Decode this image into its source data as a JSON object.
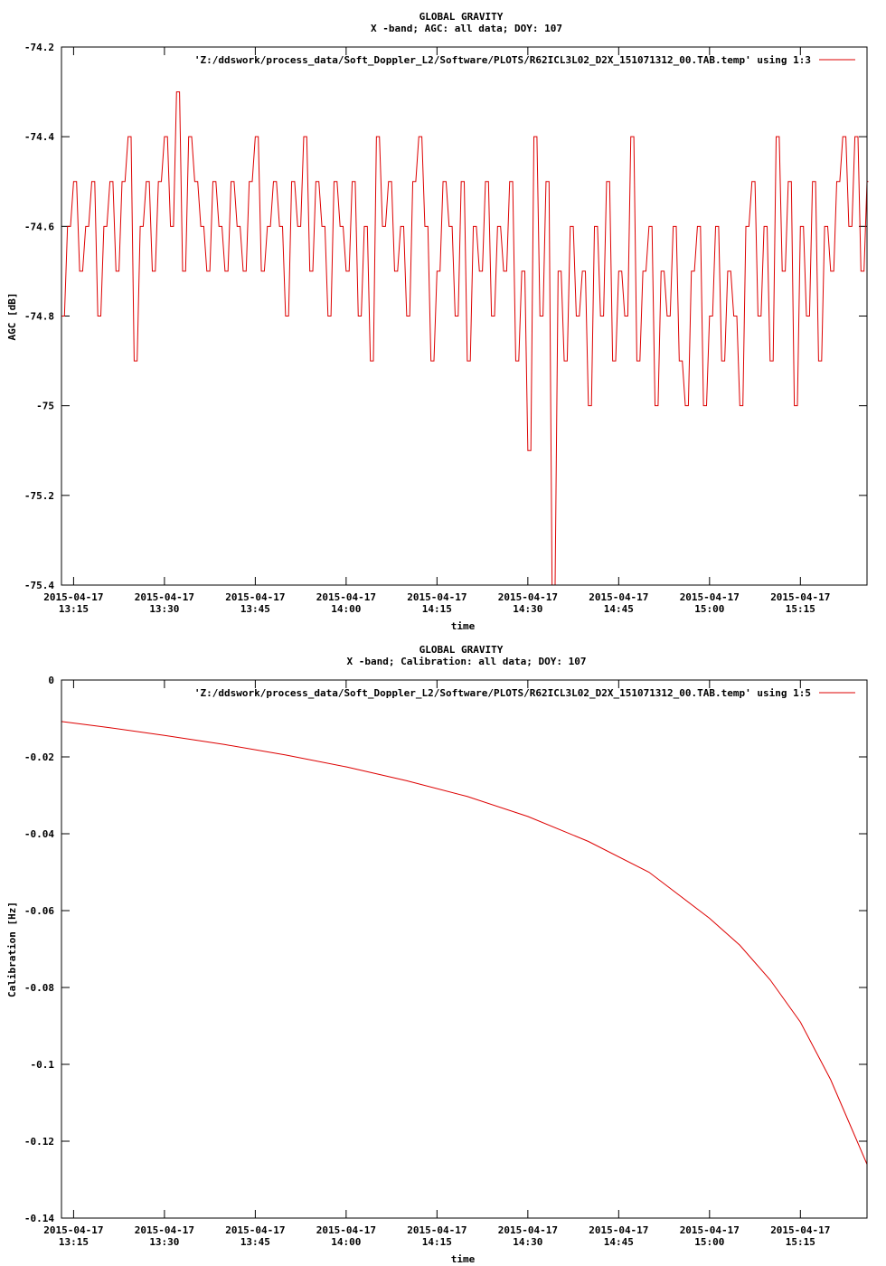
{
  "chart_data": [
    {
      "type": "line",
      "title": "GLOBAL GRAVITY",
      "subtitle": "X -band; AGC: all data; DOY: 107",
      "xlabel": "time",
      "ylabel": "AGC [dB]",
      "legend": "'Z:/ddswork/process_data/Soft_Doppler_L2/Software/PLOTS/R62ICL3L02_D2X_151071312_00.TAB.temp' using 1:3",
      "legend_position": "top-right",
      "color": "#dd0000",
      "x_range": [
        "2015-04-17 13:13",
        "2015-04-17 15:26"
      ],
      "ylim": [
        -75.4,
        -74.2
      ],
      "y_ticks": [
        {
          "value": -74.2,
          "label": "-74.2"
        },
        {
          "value": -74.4,
          "label": "-74.4"
        },
        {
          "value": -74.6,
          "label": "-74.6"
        },
        {
          "value": -74.8,
          "label": "-74.8"
        },
        {
          "value": -75.0,
          "label": "-75"
        },
        {
          "value": -75.2,
          "label": "-75.2"
        },
        {
          "value": -75.4,
          "label": "-75.4"
        }
      ],
      "x_ticks": [
        {
          "value": "13:15",
          "date": "2015-04-17",
          "time": "13:15"
        },
        {
          "value": "13:30",
          "date": "2015-04-17",
          "time": "13:30"
        },
        {
          "value": "13:45",
          "date": "2015-04-17",
          "time": "13:45"
        },
        {
          "value": "14:00",
          "date": "2015-04-17",
          "time": "14:00"
        },
        {
          "value": "14:15",
          "date": "2015-04-17",
          "time": "14:15"
        },
        {
          "value": "14:30",
          "date": "2015-04-17",
          "time": "14:30"
        },
        {
          "value": "14:45",
          "date": "2015-04-17",
          "time": "14:45"
        },
        {
          "value": "15:00",
          "date": "2015-04-17",
          "time": "15:00"
        },
        {
          "value": "15:15",
          "date": "2015-04-17",
          "time": "15:15"
        }
      ],
      "x": [
        "13:13",
        "13:14",
        "13:15",
        "13:16",
        "13:17",
        "13:18",
        "13:19",
        "13:20",
        "13:21",
        "13:22",
        "13:23",
        "13:24",
        "13:25",
        "13:26",
        "13:27",
        "13:28",
        "13:29",
        "13:30",
        "13:31",
        "13:32",
        "13:33",
        "13:34",
        "13:35",
        "13:36",
        "13:37",
        "13:38",
        "13:39",
        "13:40",
        "13:41",
        "13:42",
        "13:43",
        "13:44",
        "13:45",
        "13:46",
        "13:47",
        "13:48",
        "13:49",
        "13:50",
        "13:51",
        "13:52",
        "13:53",
        "13:54",
        "13:55",
        "13:56",
        "13:57",
        "13:58",
        "13:59",
        "14:00",
        "14:01",
        "14:02",
        "14:03",
        "14:04",
        "14:05",
        "14:06",
        "14:07",
        "14:08",
        "14:09",
        "14:10",
        "14:11",
        "14:12",
        "14:13",
        "14:14",
        "14:15",
        "14:16",
        "14:17",
        "14:18",
        "14:19",
        "14:20",
        "14:21",
        "14:22",
        "14:23",
        "14:24",
        "14:25",
        "14:26",
        "14:27",
        "14:28",
        "14:29",
        "14:30",
        "14:31",
        "14:32",
        "14:33",
        "14:34",
        "14:35",
        "14:36",
        "14:37",
        "14:38",
        "14:39",
        "14:40",
        "14:41",
        "14:42",
        "14:43",
        "14:44",
        "14:45",
        "14:46",
        "14:47",
        "14:48",
        "14:49",
        "14:50",
        "14:51",
        "14:52",
        "14:53",
        "14:54",
        "14:55",
        "14:56",
        "14:57",
        "14:58",
        "14:59",
        "15:00",
        "15:01",
        "15:02",
        "15:03",
        "15:04",
        "15:05",
        "15:06",
        "15:07",
        "15:08",
        "15:09",
        "15:10",
        "15:11",
        "15:12",
        "15:13",
        "15:14",
        "15:15",
        "15:16",
        "15:17",
        "15:18",
        "15:19",
        "15:20",
        "15:21",
        "15:22",
        "15:23",
        "15:24",
        "15:25",
        "15:26"
      ],
      "values": [
        -74.8,
        -74.6,
        -74.5,
        -74.7,
        -74.6,
        -74.5,
        -74.8,
        -74.6,
        -74.5,
        -74.7,
        -74.5,
        -74.4,
        -74.9,
        -74.6,
        -74.5,
        -74.7,
        -74.5,
        -74.4,
        -74.6,
        -74.3,
        -74.7,
        -74.4,
        -74.5,
        -74.6,
        -74.7,
        -74.5,
        -74.6,
        -74.7,
        -74.5,
        -74.6,
        -74.7,
        -74.5,
        -74.4,
        -74.7,
        -74.6,
        -74.5,
        -74.6,
        -74.8,
        -74.5,
        -74.6,
        -74.4,
        -74.7,
        -74.5,
        -74.6,
        -74.8,
        -74.5,
        -74.6,
        -74.7,
        -74.5,
        -74.8,
        -74.6,
        -74.9,
        -74.4,
        -74.6,
        -74.5,
        -74.7,
        -74.6,
        -74.8,
        -74.5,
        -74.4,
        -74.6,
        -74.9,
        -74.7,
        -74.5,
        -74.6,
        -74.8,
        -74.5,
        -74.9,
        -74.6,
        -74.7,
        -74.5,
        -74.8,
        -74.6,
        -74.7,
        -74.5,
        -74.9,
        -74.7,
        -75.1,
        -74.4,
        -74.8,
        -74.5,
        -75.4,
        -74.7,
        -74.9,
        -74.6,
        -74.8,
        -74.7,
        -75.0,
        -74.6,
        -74.8,
        -74.5,
        -74.9,
        -74.7,
        -74.8,
        -74.4,
        -74.9,
        -74.7,
        -74.6,
        -75.0,
        -74.7,
        -74.8,
        -74.6,
        -74.9,
        -75.0,
        -74.7,
        -74.6,
        -75.0,
        -74.8,
        -74.6,
        -74.9,
        -74.7,
        -74.8,
        -75.0,
        -74.6,
        -74.5,
        -74.8,
        -74.6,
        -74.9,
        -74.4,
        -74.7,
        -74.5,
        -75.0,
        -74.6,
        -74.8,
        -74.5,
        -74.9,
        -74.6,
        -74.7,
        -74.5,
        -74.4,
        -74.6,
        -74.4,
        -74.7,
        -74.5
      ]
    },
    {
      "type": "line",
      "title": "GLOBAL GRAVITY",
      "subtitle": "X -band; Calibration: all data; DOY: 107",
      "xlabel": "time",
      "ylabel": "Calibration [Hz]",
      "legend": "'Z:/ddswork/process_data/Soft_Doppler_L2/Software/PLOTS/R62ICL3L02_D2X_151071312_00.TAB.temp' using 1:5",
      "legend_position": "top-right",
      "color": "#dd0000",
      "x_range": [
        "2015-04-17 13:13",
        "2015-04-17 15:26"
      ],
      "ylim": [
        -0.14,
        0
      ],
      "y_ticks": [
        {
          "value": 0,
          "label": "0"
        },
        {
          "value": -0.02,
          "label": "-0.02"
        },
        {
          "value": -0.04,
          "label": "-0.04"
        },
        {
          "value": -0.06,
          "label": "-0.06"
        },
        {
          "value": -0.08,
          "label": "-0.08"
        },
        {
          "value": -0.1,
          "label": "-0.1"
        },
        {
          "value": -0.12,
          "label": "-0.12"
        },
        {
          "value": -0.14,
          "label": "-0.14"
        }
      ],
      "x_ticks": [
        {
          "value": "13:15",
          "date": "2015-04-17",
          "time": "13:15"
        },
        {
          "value": "13:30",
          "date": "2015-04-17",
          "time": "13:30"
        },
        {
          "value": "13:45",
          "date": "2015-04-17",
          "time": "13:45"
        },
        {
          "value": "14:00",
          "date": "2015-04-17",
          "time": "14:00"
        },
        {
          "value": "14:15",
          "date": "2015-04-17",
          "time": "14:15"
        },
        {
          "value": "14:30",
          "date": "2015-04-17",
          "time": "14:30"
        },
        {
          "value": "14:45",
          "date": "2015-04-17",
          "time": "14:45"
        },
        {
          "value": "15:00",
          "date": "2015-04-17",
          "time": "15:00"
        },
        {
          "value": "15:15",
          "date": "2015-04-17",
          "time": "15:15"
        }
      ],
      "x": [
        "13:13",
        "13:20",
        "13:30",
        "13:40",
        "13:50",
        "14:00",
        "14:10",
        "14:20",
        "14:30",
        "14:40",
        "14:50",
        "15:00",
        "15:05",
        "15:10",
        "15:15",
        "15:20",
        "15:23",
        "15:26"
      ],
      "values": [
        -0.0108,
        -0.0122,
        -0.0144,
        -0.0168,
        -0.0195,
        -0.0226,
        -0.0262,
        -0.0303,
        -0.0355,
        -0.042,
        -0.05,
        -0.062,
        -0.069,
        -0.078,
        -0.089,
        -0.104,
        -0.115,
        -0.126
      ]
    }
  ]
}
